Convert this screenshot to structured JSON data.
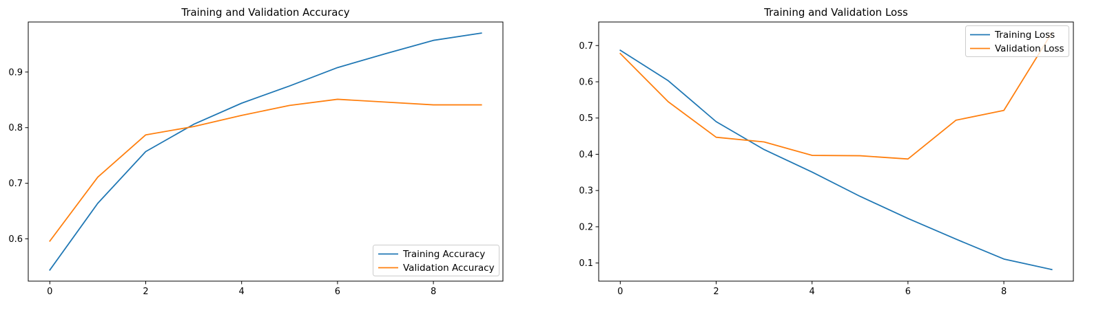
{
  "chart_data": [
    {
      "type": "line",
      "title": "Training and Validation Accuracy",
      "xlabel": "",
      "ylabel": "",
      "xlim": [
        -0.45,
        9.45
      ],
      "ylim": [
        0.524,
        0.99
      ],
      "xticks": [
        0,
        2,
        4,
        6,
        8
      ],
      "yticks": [
        0.6,
        0.7,
        0.8,
        0.9
      ],
      "xtick_labels": [
        "0",
        "2",
        "4",
        "6",
        "8"
      ],
      "ytick_labels": [
        "0.6",
        "0.7",
        "0.8",
        "0.9"
      ],
      "grid": false,
      "legend_position": "lower right",
      "x": [
        0,
        1,
        2,
        3,
        4,
        5,
        6,
        7,
        8,
        9
      ],
      "series": [
        {
          "name": "Training Accuracy",
          "color": "#1f77b4",
          "values": [
            0.544,
            0.664,
            0.757,
            0.806,
            0.844,
            0.875,
            0.908,
            0.933,
            0.957,
            0.97
          ]
        },
        {
          "name": "Validation Accuracy",
          "color": "#ff7f0e",
          "values": [
            0.596,
            0.711,
            0.787,
            0.802,
            0.822,
            0.84,
            0.851,
            0.846,
            0.841,
            0.841
          ]
        }
      ]
    },
    {
      "type": "line",
      "title": "Training and Validation Loss",
      "xlabel": "",
      "ylabel": "",
      "xlim": [
        -0.45,
        9.45
      ],
      "ylim": [
        0.05,
        0.765
      ],
      "xticks": [
        0,
        2,
        4,
        6,
        8
      ],
      "yticks": [
        0.1,
        0.2,
        0.3,
        0.4,
        0.5,
        0.6,
        0.7
      ],
      "xtick_labels": [
        "0",
        "2",
        "4",
        "6",
        "8"
      ],
      "ytick_labels": [
        "0.1",
        "0.2",
        "0.3",
        "0.4",
        "0.5",
        "0.6",
        "0.7"
      ],
      "grid": false,
      "legend_position": "upper right",
      "x": [
        0,
        1,
        2,
        3,
        4,
        5,
        6,
        7,
        8,
        9
      ],
      "series": [
        {
          "name": "Training Loss",
          "color": "#1f77b4",
          "values": [
            0.687,
            0.603,
            0.49,
            0.413,
            0.351,
            0.284,
            0.223,
            0.166,
            0.111,
            0.082
          ]
        },
        {
          "name": "Validation Loss",
          "color": "#ff7f0e",
          "values": [
            0.678,
            0.545,
            0.447,
            0.434,
            0.397,
            0.396,
            0.387,
            0.494,
            0.521,
            0.735
          ]
        }
      ]
    }
  ]
}
